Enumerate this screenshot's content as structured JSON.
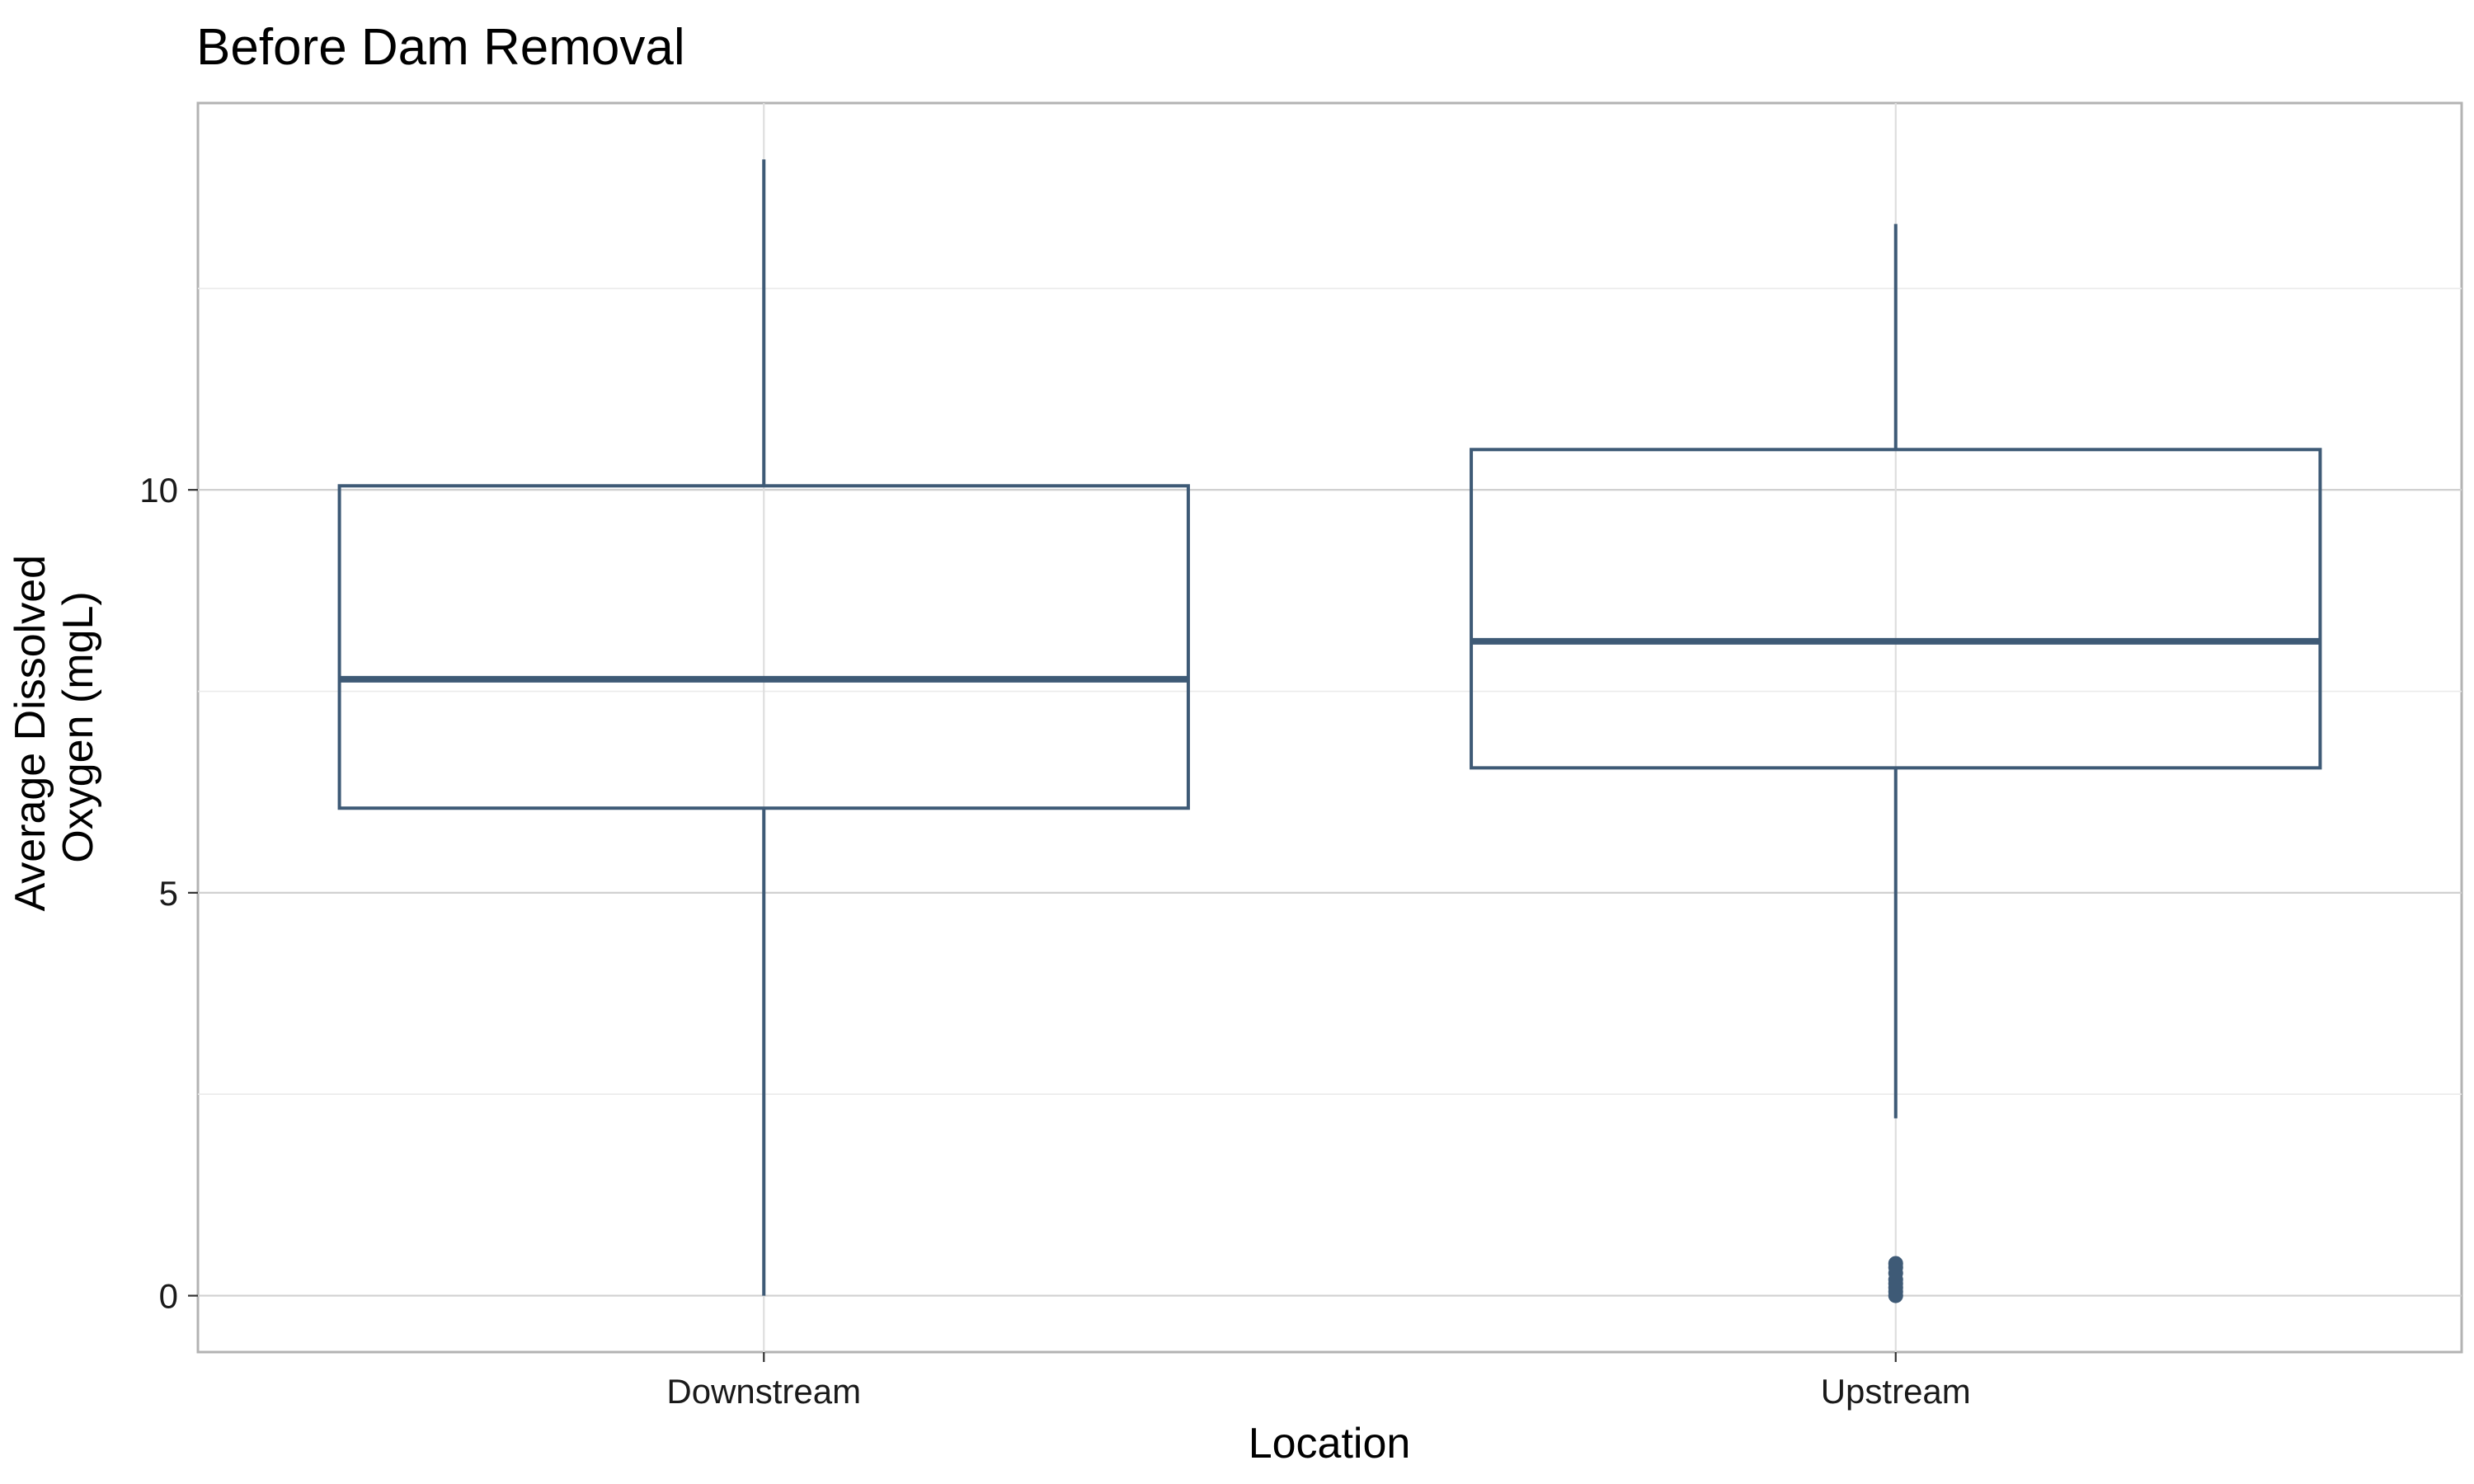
{
  "chart_data": {
    "type": "box",
    "title": "Before Dam Removal",
    "xlabel": "Location",
    "ylabel_lines": [
      "Average Dissolved",
      "Oxygen (mgL)"
    ],
    "categories": [
      "Downstream",
      "Upstream"
    ],
    "ylim": [
      -0.7,
      14.8
    ],
    "yticks": [
      0,
      5,
      10
    ],
    "grid": true,
    "box_color": "#3e5a76",
    "boxes": [
      {
        "category": "Downstream",
        "whisker_low": 0.0,
        "q1": 6.05,
        "median": 7.65,
        "q3": 10.05,
        "whisker_high": 14.1,
        "outliers": []
      },
      {
        "category": "Upstream",
        "whisker_low": 2.2,
        "q1": 6.55,
        "median": 8.12,
        "q3": 10.5,
        "whisker_high": 13.3,
        "outliers": [
          0.0,
          0.05,
          0.1,
          0.15,
          0.2,
          0.28,
          0.35,
          0.4
        ]
      }
    ]
  }
}
